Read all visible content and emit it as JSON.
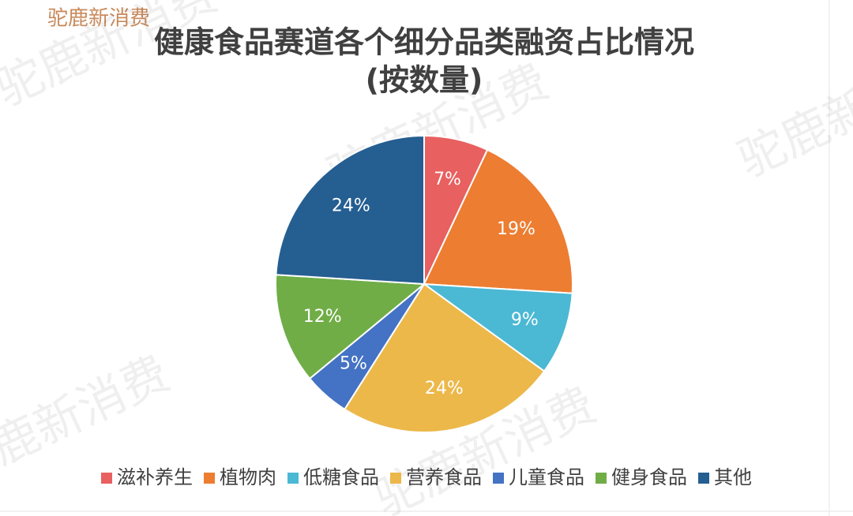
{
  "chart_data": {
    "type": "pie",
    "title": "健康食品赛道各个细分品类融资占比情况",
    "subtitle": "(按数量)",
    "watermark": "驼鹿新消费",
    "categories": [
      "滋补养生",
      "植物肉",
      "低糖食品",
      "营养食品",
      "儿童食品",
      "健身食品",
      "其他"
    ],
    "values": [
      7,
      19,
      9,
      24,
      5,
      12,
      24
    ],
    "value_labels": [
      "7%",
      "19%",
      "9%",
      "24%",
      "5%",
      "12%",
      "24%"
    ],
    "colors": [
      "#e8605f",
      "#ed7d31",
      "#4bb8d4",
      "#ecb84a",
      "#4472c4",
      "#70ad47",
      "#255e91"
    ],
    "legend": "bottom"
  }
}
